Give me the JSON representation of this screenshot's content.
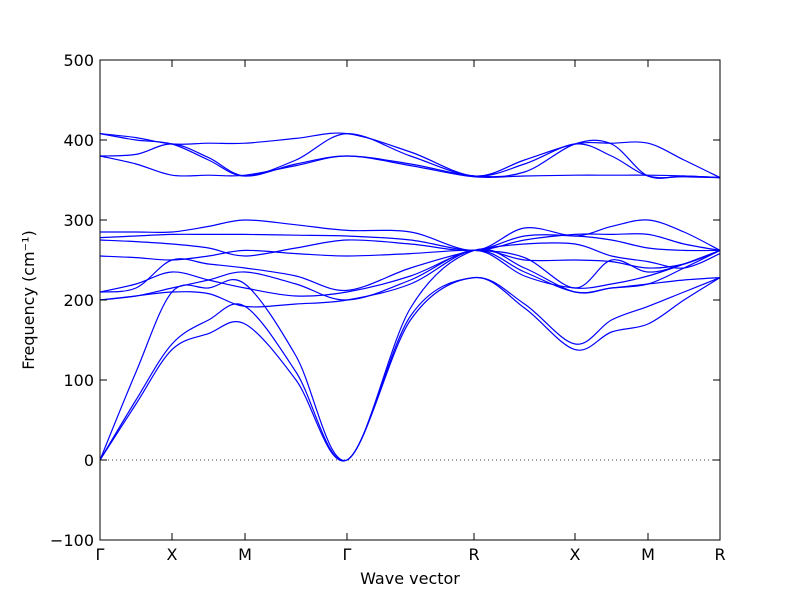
{
  "chart_data": {
    "type": "line",
    "xlabel": "Wave vector",
    "ylabel": "Frequency (cm⁻¹)",
    "x": [
      0,
      0.36,
      0.72,
      1.085,
      1.45,
      1.96,
      2.47,
      3.105,
      3.74,
      4.245,
      4.75,
      5.115,
      5.48,
      5.84,
      6.2
    ],
    "xlim": [
      0,
      6.2
    ],
    "xticks": [
      {
        "value": 0,
        "label": "Γ"
      },
      {
        "value": 0.72,
        "label": "X"
      },
      {
        "value": 1.45,
        "label": "M"
      },
      {
        "value": 2.47,
        "label": "Γ"
      },
      {
        "value": 3.74,
        "label": "R"
      },
      {
        "value": 4.75,
        "label": "X"
      },
      {
        "value": 5.48,
        "label": "M"
      },
      {
        "value": 6.2,
        "label": "R"
      }
    ],
    "ylim": [
      -100,
      500
    ],
    "yticks": [
      {
        "value": -100,
        "label": "−100"
      },
      0,
      100,
      200,
      300,
      400,
      500
    ],
    "hline": 0,
    "series": [
      {
        "color": "#0000ff",
        "values": [
          0,
          70,
          138,
          158,
          170,
          100,
          0,
          175,
          228,
          190,
          138,
          160,
          170,
          200,
          228
        ]
      },
      {
        "color": "#0000ff",
        "values": [
          0,
          75,
          145,
          175,
          192,
          110,
          0,
          180,
          228,
          195,
          145,
          175,
          192,
          210,
          228
        ]
      },
      {
        "color": "#0000ff",
        "values": [
          0,
          110,
          210,
          215,
          220,
          130,
          0,
          190,
          262,
          240,
          210,
          215,
          220,
          240,
          262
        ]
      },
      {
        "color": "#0000ff",
        "values": [
          200,
          205,
          215,
          225,
          235,
          220,
          200,
          225,
          262,
          230,
          215,
          220,
          230,
          245,
          262
        ]
      },
      {
        "color": "#0000ff",
        "values": [
          200,
          205,
          210,
          208,
          192,
          195,
          200,
          220,
          262,
          235,
          210,
          215,
          220,
          225,
          228
        ]
      },
      {
        "color": "#0000ff",
        "values": [
          210,
          220,
          235,
          225,
          215,
          205,
          210,
          230,
          262,
          250,
          250,
          248,
          240,
          245,
          262
        ]
      },
      {
        "color": "#0000ff",
        "values": [
          210,
          215,
          250,
          245,
          240,
          230,
          212,
          240,
          262,
          270,
          270,
          255,
          248,
          240,
          258
        ]
      },
      {
        "color": "#0000ff",
        "values": [
          255,
          253,
          250,
          255,
          262,
          258,
          255,
          258,
          262,
          253,
          215,
          250,
          235,
          245,
          262
        ]
      },
      {
        "color": "#0000ff",
        "values": [
          275,
          273,
          270,
          265,
          255,
          265,
          275,
          270,
          262,
          280,
          280,
          275,
          265,
          262,
          262
        ]
      },
      {
        "color": "#0000ff",
        "values": [
          278,
          280,
          282,
          282,
          282,
          281,
          280,
          275,
          262,
          275,
          282,
          282,
          282,
          270,
          262
        ]
      },
      {
        "color": "#0000ff",
        "values": [
          285,
          285,
          285,
          292,
          300,
          294,
          287,
          285,
          262,
          290,
          280,
          292,
          300,
          285,
          262
        ]
      },
      {
        "color": "#0000ff",
        "values": [
          380,
          382,
          395,
          378,
          355,
          370,
          380,
          370,
          355,
          360,
          395,
          395,
          355,
          355,
          353
        ]
      },
      {
        "color": "#0000ff",
        "values": [
          408,
          403,
          395,
          396,
          396,
          402,
          408,
          385,
          355,
          375,
          395,
          396,
          396,
          375,
          353
        ]
      },
      {
        "color": "#0000ff",
        "values": [
          380,
          370,
          356,
          356,
          356,
          368,
          380,
          368,
          354,
          355,
          356,
          356,
          356,
          355,
          353
        ]
      },
      {
        "color": "#0000ff",
        "values": [
          408,
          400,
          395,
          375,
          355,
          375,
          408,
          380,
          355,
          370,
          395,
          380,
          355,
          354,
          353
        ]
      }
    ]
  }
}
